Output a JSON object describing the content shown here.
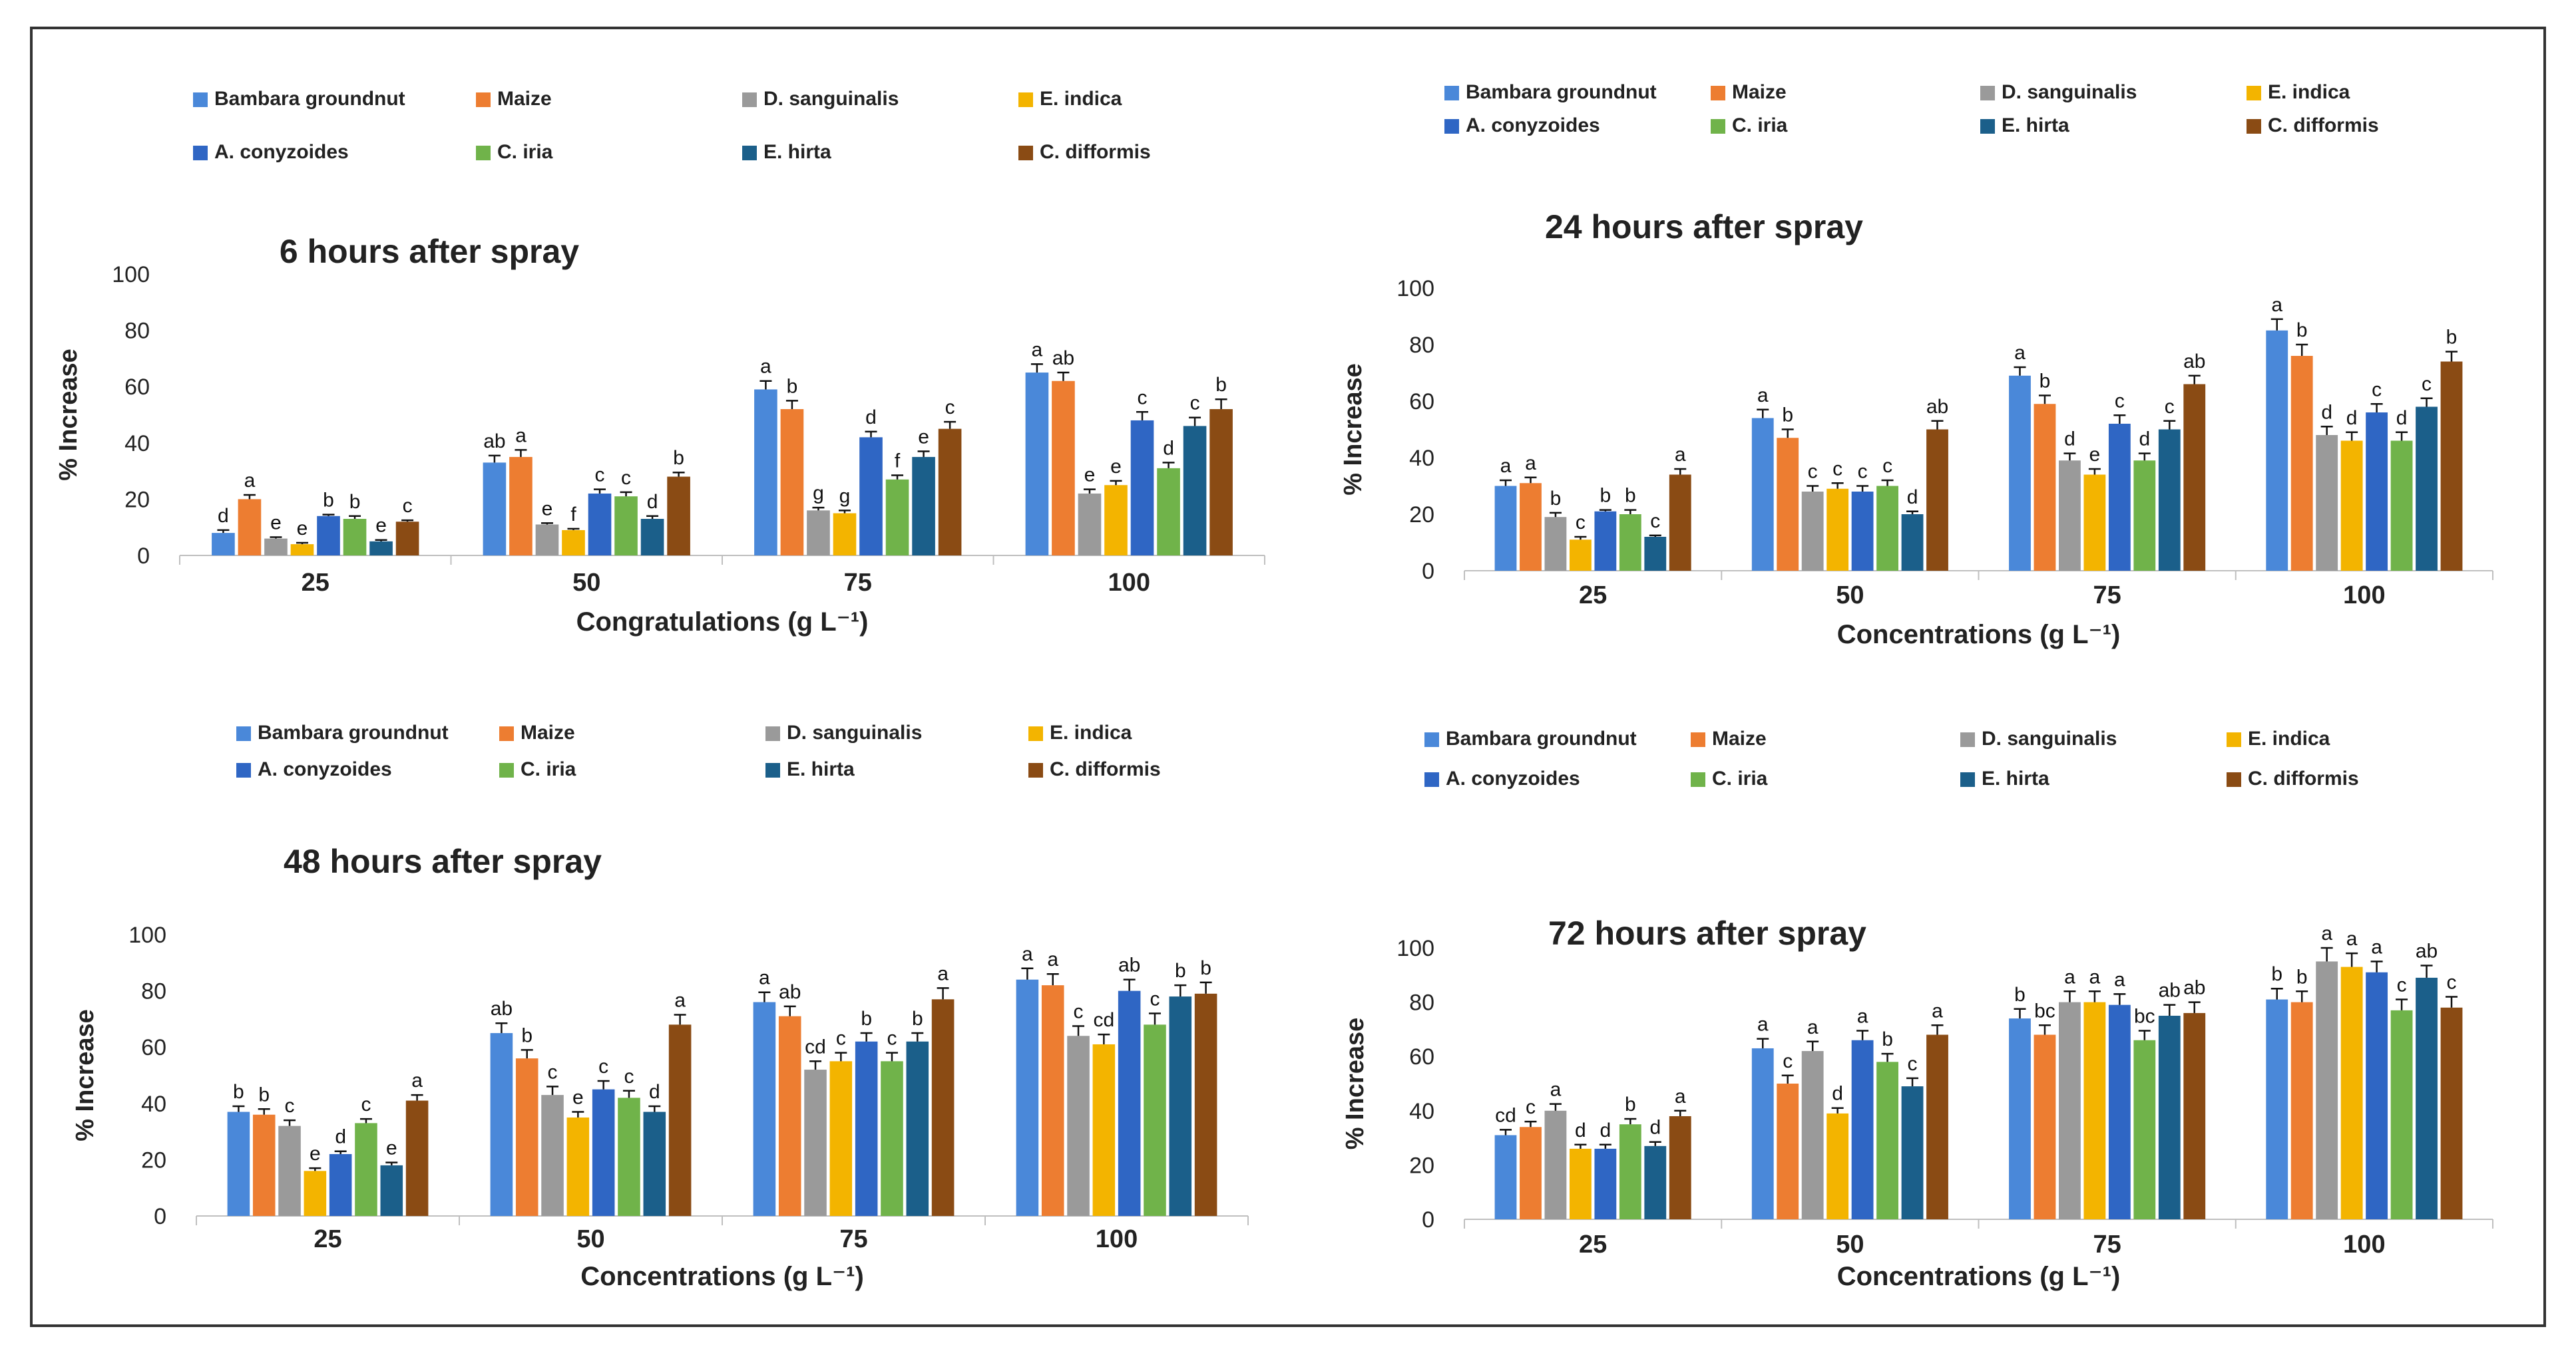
{
  "series_colors": [
    "#4a88d9",
    "#ed7d31",
    "#9a9a9a",
    "#f3b400",
    "#2f66c4",
    "#70b34a",
    "#1b5f8a",
    "#8a4b14"
  ],
  "chart_data": [
    {
      "type": "bar",
      "title": "6 hours after spray",
      "xlabel": "Congratulations (g L⁻¹)",
      "ylabel": "% Increase",
      "ylim": [
        0,
        100
      ],
      "yticks": [
        0,
        20,
        40,
        60,
        80,
        100
      ],
      "categories": [
        "25",
        "50",
        "75",
        "100"
      ],
      "legend_placement": "top",
      "series": [
        {
          "name": "Bambara groundnut",
          "values": [
            8,
            33,
            59,
            65
          ],
          "errors": [
            1,
            2.5,
            3,
            3
          ],
          "labels": [
            "d",
            "ab",
            "a",
            "a"
          ]
        },
        {
          "name": "Maize",
          "values": [
            20,
            35,
            52,
            62
          ],
          "errors": [
            1.5,
            2.5,
            3,
            3
          ],
          "labels": [
            "a",
            "a",
            "b",
            "ab"
          ]
        },
        {
          "name": "D. sanguinalis",
          "values": [
            6,
            11,
            16,
            22
          ],
          "errors": [
            0.5,
            0.5,
            1,
            1.5
          ],
          "labels": [
            "e",
            "e",
            "g",
            "e"
          ]
        },
        {
          "name": "E. indica",
          "values": [
            4,
            9,
            15,
            25
          ],
          "errors": [
            0.5,
            0.5,
            1,
            1.5
          ],
          "labels": [
            "e",
            "f",
            "g",
            "e"
          ]
        },
        {
          "name": "A. conyzoides",
          "values": [
            14,
            22,
            42,
            48
          ],
          "errors": [
            0.5,
            1.5,
            2,
            3
          ],
          "labels": [
            "b",
            "c",
            "d",
            "c"
          ]
        },
        {
          "name": "C. iria",
          "values": [
            13,
            21,
            27,
            31
          ],
          "errors": [
            1,
            1.5,
            1.5,
            2
          ],
          "labels": [
            "b",
            "c",
            "f",
            "d"
          ]
        },
        {
          "name": "E. hirta",
          "values": [
            5,
            13,
            35,
            46
          ],
          "errors": [
            0.5,
            1,
            2,
            3
          ],
          "labels": [
            "e",
            "d",
            "e",
            "c"
          ]
        },
        {
          "name": "C. difformis",
          "values": [
            12,
            28,
            45,
            52
          ],
          "errors": [
            0.5,
            1.5,
            2.5,
            3.5
          ],
          "labels": [
            "c",
            "b",
            "c",
            "b"
          ]
        }
      ]
    },
    {
      "type": "bar",
      "title": "24 hours after spray",
      "xlabel": "Concentrations (g L⁻¹)",
      "ylabel": "% Increase",
      "ylim": [
        0,
        100
      ],
      "yticks": [
        0,
        20,
        40,
        60,
        80,
        100
      ],
      "categories": [
        "25",
        "50",
        "75",
        "100"
      ],
      "legend_placement": "top",
      "series": [
        {
          "name": "Bambara groundnut",
          "values": [
            30,
            54,
            69,
            85
          ],
          "errors": [
            2,
            3,
            3,
            4
          ],
          "labels": [
            "a",
            "a",
            "a",
            "a"
          ]
        },
        {
          "name": "Maize",
          "values": [
            31,
            47,
            59,
            76
          ],
          "errors": [
            2,
            3,
            3,
            4
          ],
          "labels": [
            "a",
            "b",
            "b",
            "b"
          ]
        },
        {
          "name": "D. sanguinalis",
          "values": [
            19,
            28,
            39,
            48
          ],
          "errors": [
            1.5,
            2,
            2.5,
            3
          ],
          "labels": [
            "b",
            "c",
            "d",
            "d"
          ]
        },
        {
          "name": "E. indica",
          "values": [
            11,
            29,
            34,
            46
          ],
          "errors": [
            1,
            2,
            2,
            3
          ],
          "labels": [
            "c",
            "c",
            "e",
            "d"
          ]
        },
        {
          "name": "A. conyzoides",
          "values": [
            21,
            28,
            52,
            56
          ],
          "errors": [
            0.5,
            2,
            3,
            3
          ],
          "labels": [
            "b",
            "c",
            "c",
            "c"
          ]
        },
        {
          "name": "C. iria",
          "values": [
            20,
            30,
            39,
            46
          ],
          "errors": [
            1.5,
            2,
            2.5,
            3
          ],
          "labels": [
            "b",
            "c",
            "d",
            "d"
          ]
        },
        {
          "name": "E. hirta",
          "values": [
            12,
            20,
            50,
            58
          ],
          "errors": [
            0.5,
            1,
            3,
            3
          ],
          "labels": [
            "c",
            "d",
            "c",
            "c"
          ]
        },
        {
          "name": "C. difformis",
          "values": [
            34,
            50,
            66,
            74
          ],
          "errors": [
            2,
            3,
            3,
            3.5
          ],
          "labels": [
            "a",
            "ab",
            "ab",
            "b"
          ]
        }
      ]
    },
    {
      "type": "bar",
      "title": "48 hours after spray",
      "xlabel": "Concentrations (g L⁻¹)",
      "ylabel": "% Increase",
      "ylim": [
        0,
        100
      ],
      "yticks": [
        0,
        20,
        40,
        60,
        80,
        100
      ],
      "categories": [
        "25",
        "50",
        "75",
        "100"
      ],
      "legend_placement": "top",
      "series": [
        {
          "name": "Bambara groundnut",
          "values": [
            37,
            65,
            76,
            84
          ],
          "errors": [
            2,
            3.5,
            3.5,
            4
          ],
          "labels": [
            "b",
            "ab",
            "a",
            "a"
          ]
        },
        {
          "name": "Maize",
          "values": [
            36,
            56,
            71,
            82
          ],
          "errors": [
            2,
            3,
            3.5,
            4
          ],
          "labels": [
            "b",
            "b",
            "ab",
            "a"
          ]
        },
        {
          "name": "D. sanguinalis",
          "values": [
            32,
            43,
            52,
            64
          ],
          "errors": [
            2,
            3,
            3,
            3.5
          ],
          "labels": [
            "c",
            "c",
            "cd",
            "c"
          ]
        },
        {
          "name": "E. indica",
          "values": [
            16,
            35,
            55,
            61
          ],
          "errors": [
            1,
            2,
            3,
            3.5
          ],
          "labels": [
            "e",
            "e",
            "c",
            "cd"
          ]
        },
        {
          "name": "A. conyzoides",
          "values": [
            22,
            45,
            62,
            80
          ],
          "errors": [
            1,
            3,
            3,
            4
          ],
          "labels": [
            "d",
            "c",
            "b",
            "ab"
          ]
        },
        {
          "name": "C. iria",
          "values": [
            33,
            42,
            55,
            68
          ],
          "errors": [
            1.5,
            2.5,
            3,
            4
          ],
          "labels": [
            "c",
            "c",
            "c",
            "c"
          ]
        },
        {
          "name": "E. hirta",
          "values": [
            18,
            37,
            62,
            78
          ],
          "errors": [
            1,
            2,
            3,
            4
          ],
          "labels": [
            "e",
            "d",
            "b",
            "b"
          ]
        },
        {
          "name": "C. difformis",
          "values": [
            41,
            68,
            77,
            79
          ],
          "errors": [
            2,
            3.5,
            4,
            4
          ],
          "labels": [
            "a",
            "a",
            "a",
            "b"
          ]
        }
      ]
    },
    {
      "type": "bar",
      "title": "72 hours after spray",
      "xlabel": "Concentrations (g L⁻¹)",
      "ylabel": "% Increase",
      "ylim": [
        0,
        100
      ],
      "yticks": [
        0,
        20,
        40,
        60,
        80,
        100
      ],
      "categories": [
        "25",
        "50",
        "75",
        "100"
      ],
      "legend_placement": "top",
      "series": [
        {
          "name": "Bambara groundnut",
          "values": [
            31,
            63,
            74,
            81
          ],
          "errors": [
            2,
            3.5,
            3.5,
            4
          ],
          "labels": [
            "cd",
            "a",
            "b",
            "b"
          ]
        },
        {
          "name": "Maize",
          "values": [
            34,
            50,
            68,
            80
          ],
          "errors": [
            2,
            3,
            3.5,
            4
          ],
          "labels": [
            "c",
            "c",
            "bc",
            "b"
          ]
        },
        {
          "name": "D. sanguinalis",
          "values": [
            40,
            62,
            80,
            95
          ],
          "errors": [
            2.5,
            3.5,
            4,
            5
          ],
          "labels": [
            "a",
            "a",
            "a",
            "a"
          ]
        },
        {
          "name": "E. indica",
          "values": [
            26,
            39,
            80,
            93
          ],
          "errors": [
            1.5,
            2,
            4,
            5
          ],
          "labels": [
            "d",
            "d",
            "a",
            "a"
          ]
        },
        {
          "name": "A. conyzoides",
          "values": [
            26,
            66,
            79,
            91
          ],
          "errors": [
            1.5,
            3.5,
            4,
            4
          ],
          "labels": [
            "d",
            "a",
            "a",
            "a"
          ]
        },
        {
          "name": "C. iria",
          "values": [
            35,
            58,
            66,
            77
          ],
          "errors": [
            2,
            3,
            3.5,
            4
          ],
          "labels": [
            "b",
            "b",
            "bc",
            "c"
          ]
        },
        {
          "name": "E. hirta",
          "values": [
            27,
            49,
            75,
            89
          ],
          "errors": [
            1.5,
            3,
            4,
            4.5
          ],
          "labels": [
            "d",
            "c",
            "ab",
            "ab"
          ]
        },
        {
          "name": "C. difformis",
          "values": [
            38,
            68,
            76,
            78
          ],
          "errors": [
            2,
            3.5,
            4,
            4
          ],
          "labels": [
            "a",
            "a",
            "ab",
            "c"
          ]
        }
      ]
    }
  ]
}
